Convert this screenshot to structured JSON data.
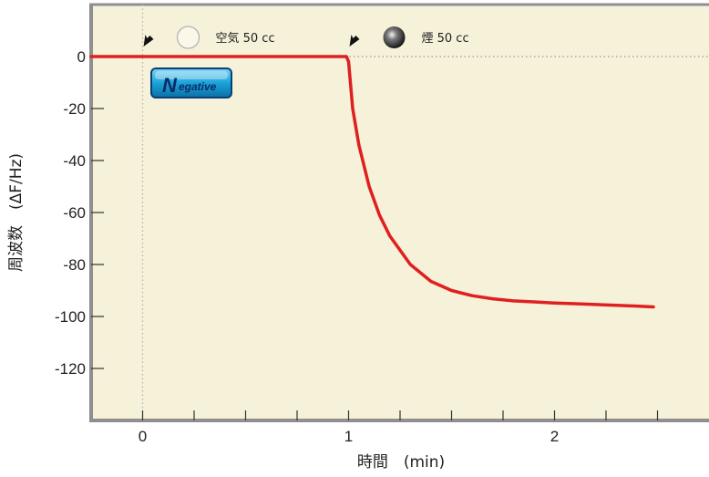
{
  "chart_data": {
    "type": "line",
    "title": "",
    "xlabel": "時間　(min)",
    "ylabel": "周波数　(ΔF/Hz)",
    "xlim": [
      -0.25,
      2.75
    ],
    "ylim": [
      -140,
      20
    ],
    "x_ticks_labeled": [
      0,
      1,
      2
    ],
    "x_ticks_minor_step": 0.25,
    "y_ticks": [
      0,
      -20,
      -40,
      -60,
      -80,
      -100,
      -120
    ],
    "grid": false,
    "baseline_y": 0,
    "colors": {
      "background": "#f6f1d9",
      "frame": "#8f8f8f",
      "series": "#e02020",
      "badge": "#1aa3d9"
    },
    "series": [
      {
        "name": "",
        "x": [
          -0.25,
          0.0,
          0.5,
          0.99,
          1.0,
          1.02,
          1.05,
          1.1,
          1.15,
          1.2,
          1.3,
          1.4,
          1.5,
          1.6,
          1.7,
          1.8,
          1.9,
          2.0,
          2.1,
          2.2,
          2.3,
          2.4,
          2.48
        ],
        "y": [
          0,
          0,
          0,
          0,
          -2,
          -20,
          -34,
          -50,
          -61,
          -69,
          -80,
          -86.5,
          -90,
          -92,
          -93.2,
          -94,
          -94.4,
          -94.8,
          -95.1,
          -95.4,
          -95.7,
          -96,
          -96.3
        ]
      }
    ],
    "annotations": [
      {
        "x": 0.0,
        "label": "空気 50 cc",
        "marker": "hollow-circle-icon"
      },
      {
        "x": 1.0,
        "label": "煙 50 cc",
        "marker": "solid-sphere-icon"
      }
    ],
    "badge": {
      "text": "Negative",
      "icon": "negative-badge"
    }
  }
}
